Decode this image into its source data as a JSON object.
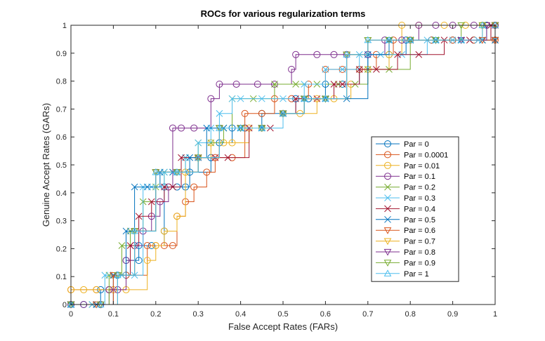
{
  "chart_data": {
    "type": "line",
    "title": "ROCs for various regularization terms",
    "xlabel": "False Accept Rates (FARs)",
    "ylabel": "Genuine Accept Rates (GARs)",
    "xlim": [
      0,
      1
    ],
    "ylim": [
      0,
      1
    ],
    "xticks": [
      "0",
      "0.1",
      "0.2",
      "0.3",
      "0.4",
      "0.5",
      "0.6",
      "0.7",
      "0.8",
      "0.9",
      "1"
    ],
    "yticks": [
      "0",
      "0.1",
      "0.2",
      "0.3",
      "0.4",
      "0.5",
      "0.6",
      "0.7",
      "0.8",
      "0.9",
      "1"
    ],
    "grid": false,
    "legend_position": "right-center",
    "series": [
      {
        "name": "Par = 0",
        "color": "#0072bd",
        "marker": "circle",
        "x": [
          0,
          0.03,
          0.07,
          0.07,
          0.09,
          0.11,
          0.13,
          0.13,
          0.16,
          0.16,
          0.19,
          0.22,
          0.22,
          0.25,
          0.27,
          0.28,
          0.33,
          0.35,
          0.38,
          0.41,
          0.45,
          0.5,
          0.53,
          0.56,
          0.6,
          0.64,
          0.68,
          0.7,
          0.75,
          0.79,
          0.85,
          0.9,
          0.95,
          0.98,
          1
        ],
        "y": [
          0,
          0,
          0,
          0.053,
          0.053,
          0.105,
          0.105,
          0.158,
          0.158,
          0.211,
          0.211,
          0.263,
          0.421,
          0.421,
          0.421,
          0.474,
          0.526,
          0.579,
          0.632,
          0.632,
          0.684,
          0.684,
          0.737,
          0.737,
          0.789,
          0.789,
          0.842,
          0.895,
          0.895,
          0.947,
          0.947,
          0.947,
          0.947,
          1,
          1
        ]
      },
      {
        "name": "Par = 0.0001",
        "color": "#d95319",
        "marker": "circle",
        "x": [
          0,
          0.06,
          0.09,
          0.13,
          0.18,
          0.2,
          0.22,
          0.24,
          0.25,
          0.27,
          0.29,
          0.32,
          0.34,
          0.38,
          0.41,
          0.45,
          0.48,
          0.52,
          0.56,
          0.6,
          0.64,
          0.68,
          0.72,
          0.76,
          0.8,
          0.85,
          0.9,
          0.95,
          1
        ],
        "y": [
          0.053,
          0.053,
          0.053,
          0.105,
          0.211,
          0.211,
          0.211,
          0.211,
          0.316,
          0.368,
          0.421,
          0.474,
          0.526,
          0.526,
          0.684,
          0.684,
          0.737,
          0.737,
          0.789,
          0.842,
          0.842,
          0.842,
          0.895,
          0.947,
          0.947,
          0.947,
          0.947,
          0.947,
          0.947
        ]
      },
      {
        "name": "Par = 0.01",
        "color": "#edb120",
        "marker": "circle",
        "x": [
          0,
          0.03,
          0.06,
          0.1,
          0.13,
          0.18,
          0.2,
          0.22,
          0.25,
          0.27,
          0.3,
          0.33,
          0.36,
          0.38,
          0.42,
          0.45,
          0.5,
          0.54,
          0.58,
          0.62,
          0.66,
          0.7,
          0.75,
          0.78,
          0.82,
          0.88,
          0.93,
          0.97,
          1
        ],
        "y": [
          0.053,
          0.053,
          0.053,
          0.053,
          0.053,
          0.158,
          0.211,
          0.263,
          0.316,
          0.474,
          0.526,
          0.579,
          0.579,
          0.579,
          0.632,
          0.632,
          0.684,
          0.684,
          0.737,
          0.737,
          0.789,
          0.842,
          0.895,
          1,
          1,
          1,
          1,
          1,
          1
        ]
      },
      {
        "name": "Par = 0.1",
        "color": "#7e2f8e",
        "marker": "circle",
        "x": [
          0,
          0.03,
          0.07,
          0.09,
          0.11,
          0.13,
          0.15,
          0.17,
          0.19,
          0.21,
          0.23,
          0.24,
          0.26,
          0.29,
          0.33,
          0.35,
          0.39,
          0.44,
          0.48,
          0.52,
          0.53,
          0.58,
          0.62,
          0.65,
          0.7,
          0.74,
          0.78,
          0.82,
          0.86,
          0.9,
          0.95,
          1
        ],
        "y": [
          0,
          0,
          0,
          0.053,
          0.053,
          0.158,
          0.211,
          0.263,
          0.316,
          0.368,
          0.421,
          0.632,
          0.632,
          0.632,
          0.737,
          0.789,
          0.789,
          0.789,
          0.789,
          0.842,
          0.895,
          0.895,
          0.895,
          0.895,
          0.895,
          0.947,
          0.947,
          1,
          1,
          1,
          1,
          1
        ]
      },
      {
        "name": "Par = 0.2",
        "color": "#77ac30",
        "marker": "x",
        "x": [
          0,
          0.05,
          0.09,
          0.12,
          0.14,
          0.17,
          0.2,
          0.22,
          0.25,
          0.27,
          0.3,
          0.33,
          0.36,
          0.38,
          0.43,
          0.48,
          0.53,
          0.58,
          0.63,
          0.67,
          0.7,
          0.75,
          0.8,
          0.86,
          0.92,
          0.97,
          1
        ],
        "y": [
          0,
          0,
          0.105,
          0.211,
          0.263,
          0.368,
          0.421,
          0.474,
          0.474,
          0.526,
          0.579,
          0.579,
          0.632,
          0.737,
          0.737,
          0.789,
          0.789,
          0.789,
          0.789,
          0.789,
          0.842,
          0.842,
          0.947,
          0.947,
          0.947,
          0.947,
          0.947
        ]
      },
      {
        "name": "Par = 0.3",
        "color": "#4dbeee",
        "marker": "x",
        "x": [
          0,
          0.05,
          0.08,
          0.12,
          0.15,
          0.17,
          0.19,
          0.22,
          0.25,
          0.27,
          0.3,
          0.33,
          0.35,
          0.38,
          0.4,
          0.45,
          0.5,
          0.55,
          0.6,
          0.64,
          0.68,
          0.73,
          0.78,
          0.84,
          0.9,
          0.96,
          1
        ],
        "y": [
          0,
          0,
          0.105,
          0.105,
          0.105,
          0.421,
          0.421,
          0.474,
          0.474,
          0.526,
          0.579,
          0.632,
          0.684,
          0.737,
          0.737,
          0.737,
          0.737,
          0.789,
          0.842,
          0.842,
          0.895,
          0.895,
          0.895,
          0.947,
          0.947,
          0.947,
          0.947
        ]
      },
      {
        "name": "Par = 0.4",
        "color": "#a2142f",
        "marker": "x",
        "x": [
          0,
          0.06,
          0.1,
          0.14,
          0.16,
          0.19,
          0.22,
          0.24,
          0.26,
          0.3,
          0.34,
          0.37,
          0.42,
          0.47,
          0.5,
          0.53,
          0.58,
          0.62,
          0.64,
          0.68,
          0.72,
          0.77,
          0.82,
          0.88,
          0.94,
          0.99,
          1
        ],
        "y": [
          0,
          0,
          0.105,
          0.211,
          0.316,
          0.368,
          0.421,
          0.421,
          0.526,
          0.526,
          0.526,
          0.526,
          0.632,
          0.632,
          0.684,
          0.737,
          0.737,
          0.789,
          0.789,
          0.842,
          0.842,
          0.895,
          0.895,
          0.947,
          0.947,
          1,
          1
        ]
      },
      {
        "name": "Par = 0.5",
        "color": "#0072bd",
        "marker": "x",
        "x": [
          0,
          0.06,
          0.1,
          0.13,
          0.15,
          0.18,
          0.21,
          0.24,
          0.28,
          0.32,
          0.36,
          0.4,
          0.45,
          0.5,
          0.55,
          0.6,
          0.65,
          0.7,
          0.75,
          0.8,
          0.86,
          0.92,
          0.97,
          1
        ],
        "y": [
          0,
          0,
          0.105,
          0.263,
          0.421,
          0.421,
          0.474,
          0.474,
          0.526,
          0.632,
          0.632,
          0.632,
          0.632,
          0.684,
          0.737,
          0.737,
          0.737,
          0.895,
          0.947,
          0.947,
          0.947,
          0.947,
          0.947,
          0.947
        ]
      },
      {
        "name": "Par = 0.6",
        "color": "#d95319",
        "marker": "triangle-down",
        "x": [
          0,
          0.06,
          0.1,
          0.15,
          0.2,
          0.25,
          0.3,
          0.35,
          0.4,
          0.45,
          0.5,
          0.55,
          0.6,
          0.65,
          0.7,
          0.75,
          0.8,
          0.86,
          0.92,
          0.97,
          1
        ],
        "y": [
          0,
          0,
          0.105,
          0.263,
          0.474,
          0.474,
          0.526,
          0.632,
          0.632,
          0.632,
          0.684,
          0.737,
          0.737,
          0.895,
          0.947,
          0.947,
          0.947,
          0.947,
          0.947,
          0.947,
          0.947
        ]
      },
      {
        "name": "Par = 0.7",
        "color": "#edb120",
        "marker": "triangle-down",
        "x": [
          0,
          0.07,
          0.11,
          0.15,
          0.2,
          0.25,
          0.3,
          0.35,
          0.4,
          0.45,
          0.5,
          0.55,
          0.6,
          0.65,
          0.7,
          0.75,
          0.8,
          0.86,
          0.92,
          0.97,
          1
        ],
        "y": [
          0,
          0,
          0.105,
          0.263,
          0.474,
          0.474,
          0.526,
          0.632,
          0.632,
          0.632,
          0.684,
          0.737,
          0.737,
          0.895,
          0.947,
          0.947,
          0.947,
          0.947,
          0.947,
          1,
          1
        ]
      },
      {
        "name": "Par = 0.8",
        "color": "#7e2f8e",
        "marker": "triangle-down",
        "x": [
          0,
          0.07,
          0.11,
          0.15,
          0.2,
          0.25,
          0.3,
          0.35,
          0.4,
          0.45,
          0.5,
          0.55,
          0.6,
          0.65,
          0.7,
          0.75,
          0.8,
          0.86,
          0.92,
          0.98,
          1
        ],
        "y": [
          0,
          0,
          0.105,
          0.263,
          0.474,
          0.474,
          0.526,
          0.632,
          0.632,
          0.632,
          0.684,
          0.737,
          0.737,
          0.895,
          0.947,
          0.947,
          0.947,
          0.947,
          0.947,
          1,
          1
        ]
      },
      {
        "name": "Par = 0.9",
        "color": "#77ac30",
        "marker": "triangle-down",
        "x": [
          0,
          0.07,
          0.11,
          0.15,
          0.2,
          0.25,
          0.3,
          0.35,
          0.4,
          0.45,
          0.5,
          0.55,
          0.6,
          0.65,
          0.7,
          0.75,
          0.8,
          0.86,
          0.92,
          0.97,
          1
        ],
        "y": [
          0,
          0,
          0.105,
          0.263,
          0.474,
          0.474,
          0.526,
          0.632,
          0.632,
          0.632,
          0.684,
          0.737,
          0.737,
          0.895,
          0.947,
          0.947,
          0.947,
          0.947,
          1,
          1,
          1
        ]
      },
      {
        "name": "Par = 1",
        "color": "#4dbeee",
        "marker": "triangle-up",
        "x": [
          0,
          0.07,
          0.11,
          0.15,
          0.2,
          0.25,
          0.3,
          0.35,
          0.4,
          0.45,
          0.5,
          0.55,
          0.6,
          0.65,
          0.7,
          0.75,
          0.8,
          0.86,
          0.92,
          0.97,
          1
        ],
        "y": [
          0,
          0,
          0.105,
          0.263,
          0.474,
          0.474,
          0.526,
          0.632,
          0.632,
          0.632,
          0.684,
          0.737,
          0.737,
          0.895,
          0.947,
          0.947,
          0.947,
          0.947,
          0.947,
          1,
          1
        ]
      }
    ]
  }
}
